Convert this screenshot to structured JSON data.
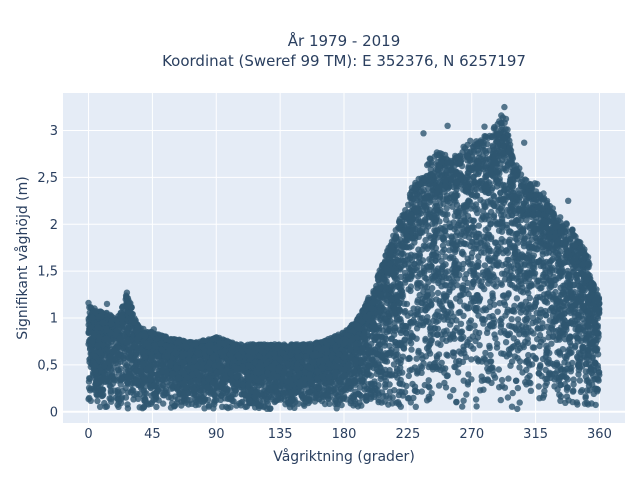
{
  "chart_data": {
    "type": "scatter",
    "title": "År 1979 - 2019",
    "subtitle": "Koordinat (Sweref 99 TM): E 352376, N 6257197",
    "xlabel": "Vågriktning (grader)",
    "ylabel": "Signifikant våghöjd (m)",
    "xlim": [
      -18,
      378
    ],
    "ylim": [
      -0.12,
      3.4
    ],
    "x_ticks": [
      0,
      45,
      90,
      135,
      180,
      225,
      270,
      315,
      360
    ],
    "x_tick_labels": [
      "0",
      "45",
      "90",
      "135",
      "180",
      "225",
      "270",
      "315",
      "360"
    ],
    "y_ticks": [
      0,
      0.5,
      1,
      1.5,
      2,
      2.5,
      3
    ],
    "y_tick_labels": [
      "0",
      "0,5",
      "1",
      "1,5",
      "2",
      "2,5",
      "3"
    ],
    "grid": true,
    "legend": "none",
    "background_color": "#e5ecf6",
    "point_color": "#2e5670",
    "envelope_description": "Dense cloud of points from 0 to 360 degrees; upper envelope of significant wave height by direction",
    "envelope": [
      {
        "x": 0,
        "y": 1.15
      },
      {
        "x": 10,
        "y": 1.08
      },
      {
        "x": 20,
        "y": 1.0
      },
      {
        "x": 27,
        "y": 1.27
      },
      {
        "x": 35,
        "y": 0.92
      },
      {
        "x": 45,
        "y": 0.85
      },
      {
        "x": 60,
        "y": 0.78
      },
      {
        "x": 75,
        "y": 0.74
      },
      {
        "x": 90,
        "y": 0.8
      },
      {
        "x": 105,
        "y": 0.72
      },
      {
        "x": 120,
        "y": 0.72
      },
      {
        "x": 135,
        "y": 0.72
      },
      {
        "x": 150,
        "y": 0.72
      },
      {
        "x": 165,
        "y": 0.75
      },
      {
        "x": 180,
        "y": 0.85
      },
      {
        "x": 190,
        "y": 1.0
      },
      {
        "x": 200,
        "y": 1.3
      },
      {
        "x": 210,
        "y": 1.75
      },
      {
        "x": 220,
        "y": 2.1
      },
      {
        "x": 230,
        "y": 2.5
      },
      {
        "x": 240,
        "y": 2.75
      },
      {
        "x": 250,
        "y": 2.85
      },
      {
        "x": 260,
        "y": 2.8
      },
      {
        "x": 270,
        "y": 2.9
      },
      {
        "x": 280,
        "y": 3.0
      },
      {
        "x": 293,
        "y": 3.25
      },
      {
        "x": 300,
        "y": 2.7
      },
      {
        "x": 310,
        "y": 2.5
      },
      {
        "x": 320,
        "y": 2.4
      },
      {
        "x": 330,
        "y": 2.1
      },
      {
        "x": 340,
        "y": 2.0
      },
      {
        "x": 350,
        "y": 1.75
      },
      {
        "x": 355,
        "y": 1.45
      },
      {
        "x": 360,
        "y": 1.2
      }
    ],
    "lower_bound": 0.0,
    "outliers": [
      {
        "x": 293,
        "y": 3.25
      },
      {
        "x": 279,
        "y": 3.04
      },
      {
        "x": 253,
        "y": 3.05
      },
      {
        "x": 236,
        "y": 2.97
      },
      {
        "x": 307,
        "y": 2.87
      },
      {
        "x": 27,
        "y": 1.27
      },
      {
        "x": 0,
        "y": 1.16
      },
      {
        "x": 13,
        "y": 1.15
      },
      {
        "x": 46,
        "y": 0.88
      },
      {
        "x": 338,
        "y": 2.25
      },
      {
        "x": 352,
        "y": 1.65
      }
    ]
  }
}
